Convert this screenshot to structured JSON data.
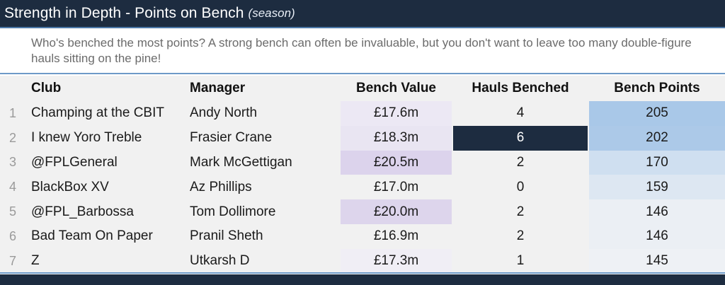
{
  "title": {
    "main": "Strength in Depth - Points on Bench",
    "suffix": "(season)"
  },
  "description": "Who's benched the most points? A strong bench can often be invaluable, but you don't want to leave too many double-figure hauls sitting on the pine!",
  "columns": {
    "club": "Club",
    "manager": "Manager",
    "bench_value": "Bench Value",
    "hauls_benched": "Hauls Benched",
    "bench_points": "Bench Points"
  },
  "rows": [
    {
      "rank": "1",
      "club": "Champing at the CBIT",
      "manager": "Andy North",
      "bench_value": "£17.6m",
      "hauls_benched": "4",
      "bench_points": "205",
      "colors": {
        "value": "#ece8f4",
        "hauls": "#f1f1f1",
        "points": "#a9c8e8",
        "hauls_text": "#1a1a1a"
      }
    },
    {
      "rank": "2",
      "club": "I knew Yoro Treble",
      "manager": "Frasier Crane",
      "bench_value": "£18.3m",
      "hauls_benched": "6",
      "bench_points": "202",
      "colors": {
        "value": "#e9e5f2",
        "hauls": "#1d2c40",
        "points": "#acc9e8",
        "hauls_text": "#ffffff"
      }
    },
    {
      "rank": "3",
      "club": "@FPLGeneral",
      "manager": "Mark McGettigan",
      "bench_value": "£20.5m",
      "hauls_benched": "2",
      "bench_points": "170",
      "colors": {
        "value": "#dcd3ec",
        "hauls": "#f1f1f1",
        "points": "#cfdff0",
        "hauls_text": "#1a1a1a"
      }
    },
    {
      "rank": "4",
      "club": "BlackBox XV",
      "manager": "Az Phillips",
      "bench_value": "£17.0m",
      "hauls_benched": "0",
      "bench_points": "159",
      "colors": {
        "value": "#f1f1f1",
        "hauls": "#f1f1f1",
        "points": "#dde7f2",
        "hauls_text": "#1a1a1a"
      }
    },
    {
      "rank": "5",
      "club": "@FPL_Barbossa",
      "manager": "Tom Dollimore",
      "bench_value": "£20.0m",
      "hauls_benched": "2",
      "bench_points": "146",
      "colors": {
        "value": "#ddd5ec",
        "hauls": "#f1f1f1",
        "points": "#ebeff4",
        "hauls_text": "#1a1a1a"
      }
    },
    {
      "rank": "6",
      "club": "Bad Team On Paper",
      "manager": "Pranil Sheth",
      "bench_value": "£16.9m",
      "hauls_benched": "2",
      "bench_points": "146",
      "colors": {
        "value": "#f1f1f1",
        "hauls": "#f1f1f1",
        "points": "#ebeff4",
        "hauls_text": "#1a1a1a"
      }
    },
    {
      "rank": "7",
      "club": "Z",
      "manager": "Utkarsh D",
      "bench_value": "£17.3m",
      "hauls_benched": "1",
      "bench_points": "145",
      "colors": {
        "value": "#f0eef5",
        "hauls": "#f1f1f1",
        "points": "#eef1f5",
        "hauls_text": "#1a1a1a"
      }
    }
  ],
  "theme": {
    "header_bg": "#1d2c40",
    "rule": "#6d9ac8",
    "table_bg": "#f1f1f1"
  }
}
